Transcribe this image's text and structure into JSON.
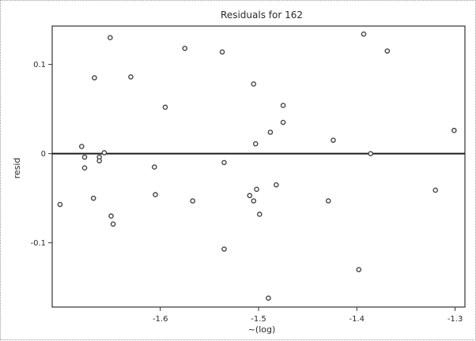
{
  "chart_data": {
    "type": "scatter",
    "title": "Residuals for 162",
    "xlabel": "~(log)",
    "ylabel": "resid",
    "xlim": [
      -1.71,
      -1.29
    ],
    "ylim": [
      -0.172,
      0.143
    ],
    "x_ticks": [
      {
        "value": -1.6,
        "label": "-1.6"
      },
      {
        "value": -1.5,
        "label": "-1.5"
      },
      {
        "value": -1.4,
        "label": "-1.4"
      },
      {
        "value": -1.3,
        "label": "-1.3"
      }
    ],
    "y_ticks": [
      {
        "value": 0.1,
        "label": "0.1"
      },
      {
        "value": 0,
        "label": "0"
      },
      {
        "value": -0.1,
        "label": "-0.1"
      }
    ],
    "reference_line": {
      "y": 0
    },
    "marker_color": "#444444",
    "points": [
      {
        "x": -1.651,
        "y": 0.13
      },
      {
        "x": -1.667,
        "y": 0.085
      },
      {
        "x": -1.63,
        "y": 0.086
      },
      {
        "x": -1.575,
        "y": 0.118
      },
      {
        "x": -1.537,
        "y": 0.114
      },
      {
        "x": -1.595,
        "y": 0.052
      },
      {
        "x": -1.505,
        "y": 0.078
      },
      {
        "x": -1.475,
        "y": 0.054
      },
      {
        "x": -1.475,
        "y": 0.035
      },
      {
        "x": -1.488,
        "y": 0.024
      },
      {
        "x": -1.503,
        "y": 0.011
      },
      {
        "x": -1.424,
        "y": 0.015
      },
      {
        "x": -1.393,
        "y": 0.134
      },
      {
        "x": -1.369,
        "y": 0.115
      },
      {
        "x": -1.301,
        "y": 0.026
      },
      {
        "x": -1.386,
        "y": 0.0
      },
      {
        "x": -1.68,
        "y": 0.008
      },
      {
        "x": -1.657,
        "y": 0.001
      },
      {
        "x": -1.662,
        "y": -0.004
      },
      {
        "x": -1.677,
        "y": -0.004
      },
      {
        "x": -1.677,
        "y": -0.016
      },
      {
        "x": -1.662,
        "y": -0.008
      },
      {
        "x": -1.606,
        "y": -0.015
      },
      {
        "x": -1.535,
        "y": -0.01
      },
      {
        "x": -1.702,
        "y": -0.057
      },
      {
        "x": -1.668,
        "y": -0.05
      },
      {
        "x": -1.65,
        "y": -0.07
      },
      {
        "x": -1.648,
        "y": -0.079
      },
      {
        "x": -1.605,
        "y": -0.046
      },
      {
        "x": -1.567,
        "y": -0.053
      },
      {
        "x": -1.502,
        "y": -0.04
      },
      {
        "x": -1.509,
        "y": -0.047
      },
      {
        "x": -1.505,
        "y": -0.053
      },
      {
        "x": -1.499,
        "y": -0.068
      },
      {
        "x": -1.482,
        "y": -0.035
      },
      {
        "x": -1.535,
        "y": -0.107
      },
      {
        "x": -1.429,
        "y": -0.053
      },
      {
        "x": -1.32,
        "y": -0.041
      },
      {
        "x": -1.398,
        "y": -0.13
      },
      {
        "x": -1.49,
        "y": -0.162
      }
    ]
  }
}
